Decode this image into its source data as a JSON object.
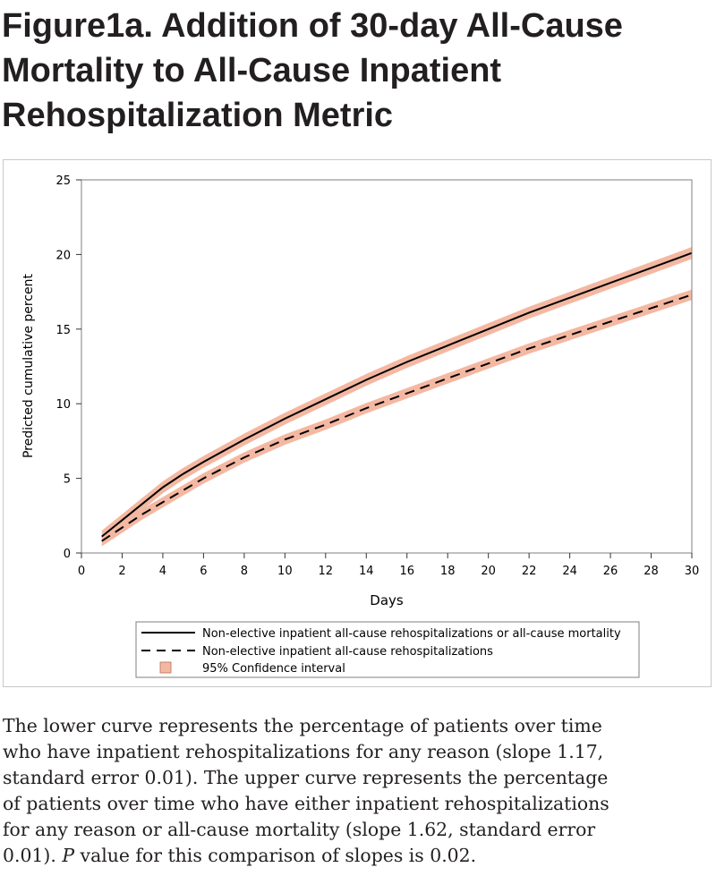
{
  "figure": {
    "title_lines": [
      "Figure1a. Addition of 30-day All-Cause",
      "Mortality to All-Cause Inpatient",
      "Rehospitalization Metric"
    ],
    "caption_lines": [
      "The lower curve represents the percentage of patients over time",
      "who have inpatient rehospitalizations for any reason (slope 1.17,",
      "standard error 0.01). The upper curve represents the percentage",
      "of patients over time who have either inpatient rehospitalizations",
      "for any reason or all-cause mortality (slope 1.62, standard error",
      "0.01)."
    ],
    "caption_last_italic": "P",
    "caption_last_rest": " value for this comparison of slopes is 0.02."
  },
  "colors": {
    "ci_band": "#f4b8a2",
    "line": "#000000",
    "frame": "#c8c8c8",
    "axis": "#333333"
  },
  "chart_data": {
    "type": "line",
    "xlabel": "Days",
    "ylabel": "Predicted cumulative percent",
    "xlim": [
      0,
      30
    ],
    "ylim": [
      0,
      25
    ],
    "xticks": [
      0,
      2,
      4,
      6,
      8,
      10,
      12,
      14,
      16,
      18,
      20,
      22,
      24,
      26,
      28,
      30
    ],
    "yticks": [
      0,
      5,
      10,
      15,
      20,
      25
    ],
    "legend_placement": "bottom",
    "legend": [
      {
        "label": "Non-elective inpatient all-cause rehospitalizations or all-cause mortality",
        "style": "solid"
      },
      {
        "label": "Non-elective inpatient all-cause rehospitalizations",
        "style": "dashed"
      },
      {
        "label": "95% Confidence interval",
        "style": "band"
      }
    ],
    "series": [
      {
        "name": "Non-elective inpatient all-cause rehospitalizations or all-cause mortality",
        "style": "solid",
        "x": [
          1,
          2,
          3,
          4,
          5,
          6,
          8,
          10,
          12,
          14,
          16,
          18,
          20,
          22,
          24,
          26,
          28,
          30
        ],
        "y": [
          1.1,
          2.2,
          3.3,
          4.4,
          5.3,
          6.1,
          7.6,
          9.0,
          10.3,
          11.6,
          12.8,
          13.9,
          15.0,
          16.1,
          17.1,
          18.1,
          19.1,
          20.1
        ],
        "ci_halfwidth": 0.4
      },
      {
        "name": "Non-elective inpatient all-cause rehospitalizations",
        "style": "dashed",
        "x": [
          1,
          2,
          3,
          4,
          5,
          6,
          8,
          10,
          12,
          14,
          16,
          18,
          20,
          22,
          24,
          26,
          28,
          30
        ],
        "y": [
          0.8,
          1.7,
          2.6,
          3.4,
          4.2,
          5.0,
          6.4,
          7.6,
          8.6,
          9.7,
          10.7,
          11.7,
          12.7,
          13.7,
          14.6,
          15.5,
          16.4,
          17.3
        ],
        "ci_halfwidth": 0.35
      }
    ]
  }
}
